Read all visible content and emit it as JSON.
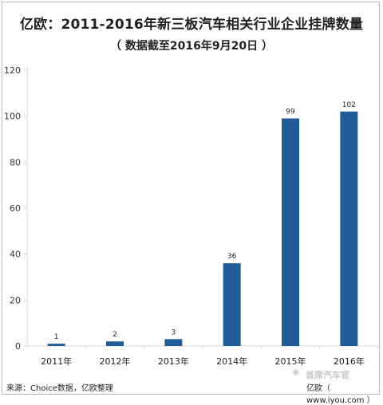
{
  "header": {
    "title": "亿欧：2011-2016年新三板汽车相关行业企业挂牌数量",
    "subtitle": "（ 数据截至2016年9月20日 ）"
  },
  "footer": {
    "source": "来源：Choice数据，亿欧整理",
    "site": "亿欧（ www.iyou.com ）",
    "watermark": "首席汽车官"
  },
  "colors": {
    "bar": "#1f5c99",
    "axis": "#d9d9d9",
    "grid": "#d9d9d9"
  },
  "chart_data": {
    "type": "bar",
    "categories": [
      "2011年",
      "2012年",
      "2013年",
      "2014年",
      "2015年",
      "2016年"
    ],
    "values": [
      1,
      2,
      3,
      36,
      99,
      102
    ],
    "data_labels": [
      "1",
      "2",
      "3",
      "36",
      "99",
      "102"
    ],
    "ylim": [
      0,
      120
    ],
    "yticks": [
      0,
      20,
      40,
      60,
      80,
      100,
      120
    ],
    "grid": false,
    "legend": "none",
    "title": "亿欧：2011-2016年新三板汽车相关行业企业挂牌数量",
    "subtitle": "（ 数据截至2016年9月20日 ）"
  }
}
